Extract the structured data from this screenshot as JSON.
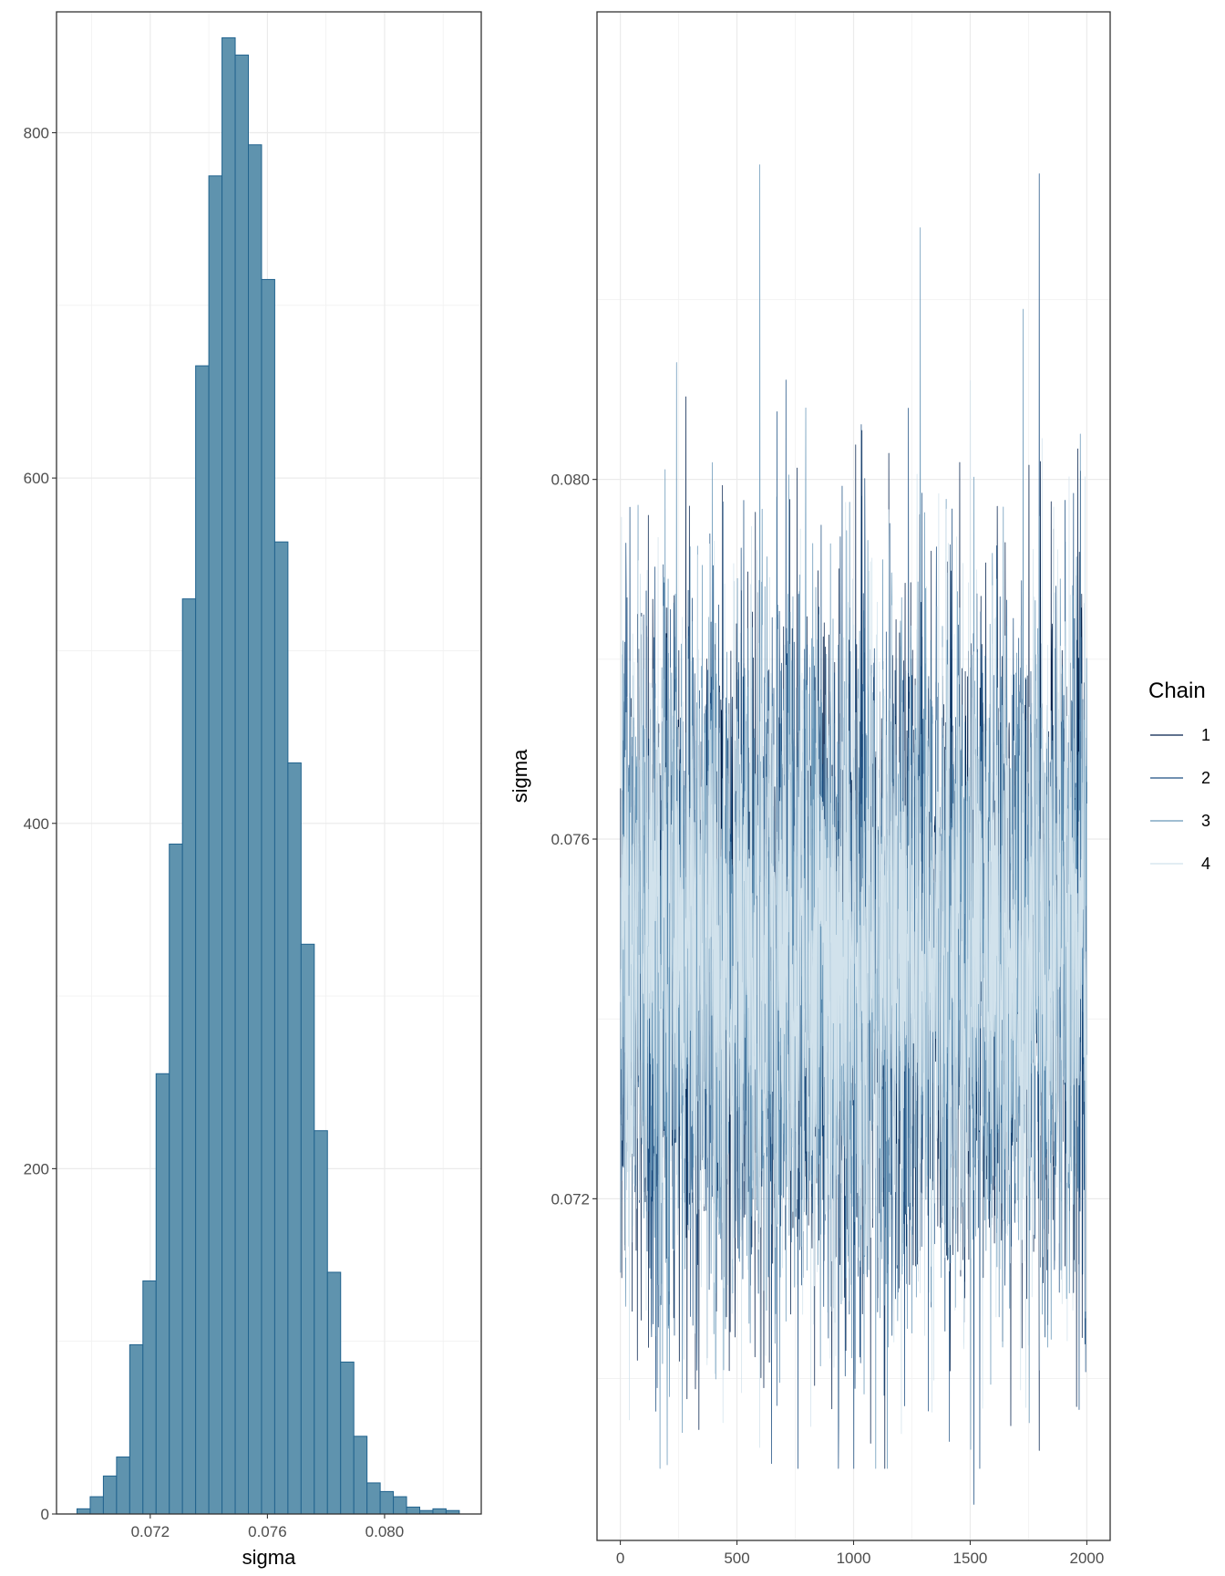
{
  "chart_data": [
    {
      "type": "bar",
      "subtype": "histogram",
      "xlabel": "sigma",
      "ylabel": "",
      "xlim": [
        0.0688,
        0.0833
      ],
      "ylim": [
        0,
        870
      ],
      "x_ticks": [
        "0.072",
        "0.076",
        "0.080"
      ],
      "x_tick_values": [
        0.072,
        0.076,
        0.08
      ],
      "y_ticks": [
        "0",
        "200",
        "400",
        "600",
        "800"
      ],
      "y_tick_values": [
        0,
        200,
        400,
        600,
        800
      ],
      "bin_start": 0.0695,
      "bin_width": 0.00045,
      "values": [
        3,
        10,
        22,
        33,
        98,
        135,
        255,
        388,
        530,
        665,
        775,
        855,
        845,
        793,
        715,
        563,
        435,
        330,
        222,
        140,
        88,
        45,
        18,
        13,
        10,
        4,
        2,
        3,
        2
      ],
      "fill_color": "#5f93ae",
      "edge_color": "#21638e",
      "grid": true
    },
    {
      "type": "line",
      "subtype": "trace",
      "xlabel": "",
      "ylabel": "sigma",
      "xlim": [
        -100,
        2100
      ],
      "ylim": [
        0.0682,
        0.0852
      ],
      "x_ticks": [
        "0",
        "500",
        "1000",
        "1500",
        "2000"
      ],
      "x_tick_values": [
        0,
        500,
        1000,
        1500,
        2000
      ],
      "y_ticks": [
        "0.072",
        "0.076",
        "0.080"
      ],
      "y_tick_values": [
        0.072,
        0.076,
        0.08
      ],
      "iterations": 2000,
      "center": 0.0748,
      "sd": 0.0019,
      "series": [
        {
          "name": "1",
          "color": "#011f4b"
        },
        {
          "name": "2",
          "color": "#1d4f82"
        },
        {
          "name": "3",
          "color": "#6796b8"
        },
        {
          "name": "4",
          "color": "#d1e2ec"
        }
      ],
      "extremes": [
        {
          "chain": 3,
          "iteration": 597,
          "value": 0.0835
        },
        {
          "chain": 2,
          "iteration": 1795,
          "value": 0.0834
        },
        {
          "chain": 3,
          "iteration": 1285,
          "value": 0.0828
        },
        {
          "chain": 1,
          "iteration": 1800,
          "value": 0.0802
        },
        {
          "chain": 3,
          "iteration": 240,
          "value": 0.0813
        },
        {
          "chain": 4,
          "iteration": 1500,
          "value": 0.0811
        },
        {
          "chain": 2,
          "iteration": 1515,
          "value": 0.0686
        },
        {
          "chain": 1,
          "iteration": 1795,
          "value": 0.0692
        },
        {
          "chain": 3,
          "iteration": 265,
          "value": 0.0694
        },
        {
          "chain": 2,
          "iteration": 670,
          "value": 0.0697
        },
        {
          "chain": 2,
          "iteration": 1410,
          "value": 0.0693
        }
      ],
      "legend": {
        "title": "Chain",
        "position": "right"
      },
      "grid": true
    }
  ]
}
